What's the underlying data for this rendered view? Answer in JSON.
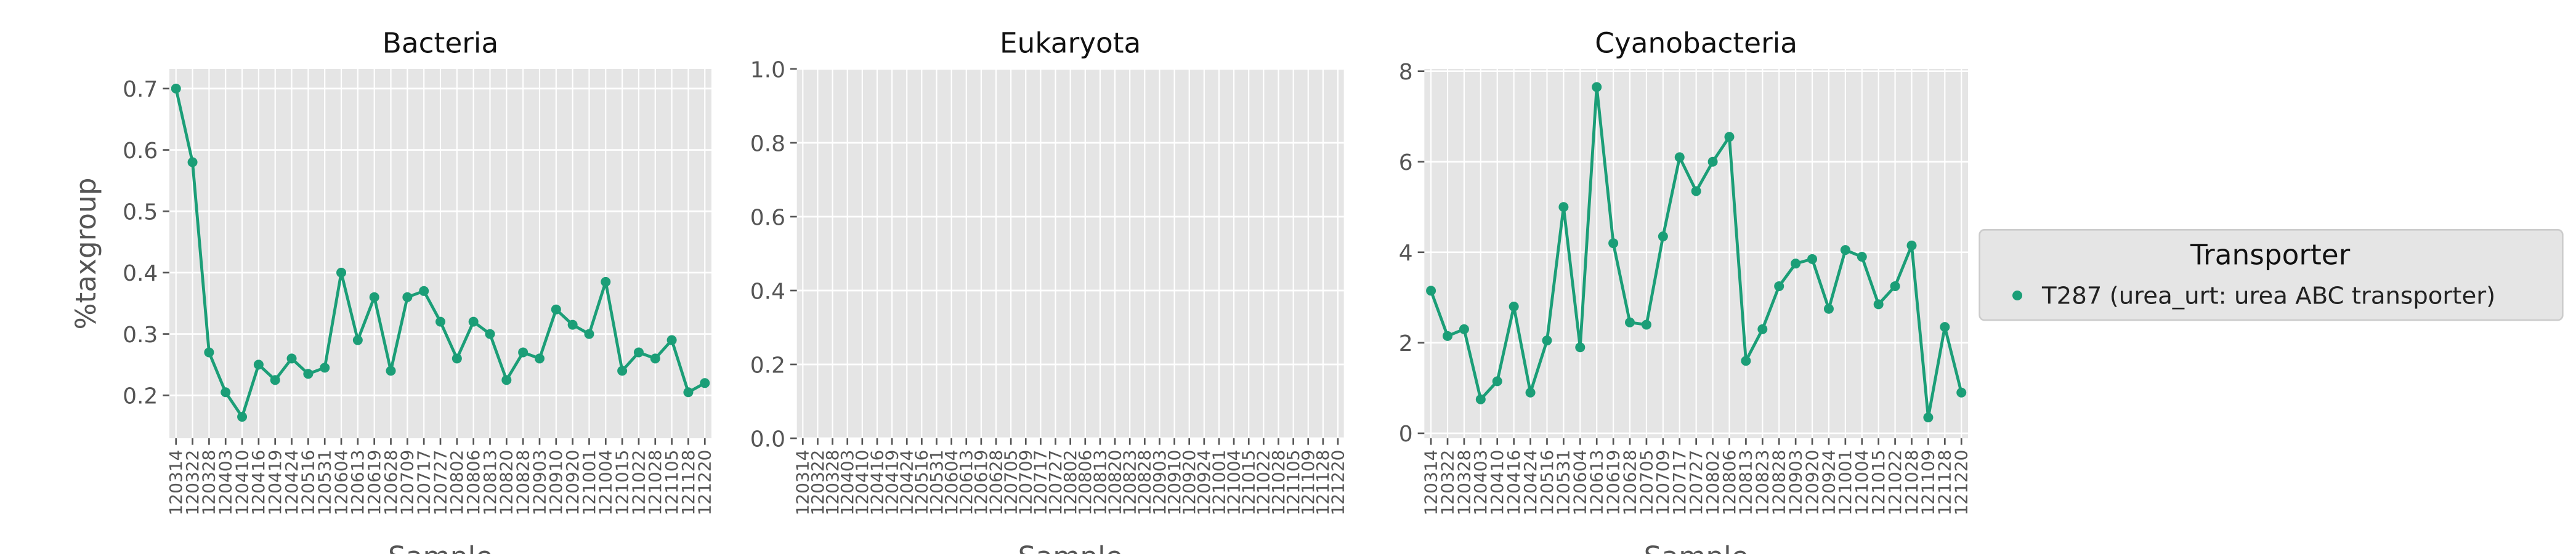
{
  "chart_data": [
    {
      "type": "line",
      "title": "Bacteria",
      "xlabel": "Sample",
      "ylabel": "%taxgroup",
      "categories": [
        "120314",
        "120322",
        "120328",
        "120403",
        "120410",
        "120416",
        "120419",
        "120424",
        "120516",
        "120531",
        "120604",
        "120613",
        "120619",
        "120628",
        "120709",
        "120717",
        "120727",
        "120802",
        "120806",
        "120813",
        "120820",
        "120828",
        "120903",
        "120910",
        "120920",
        "121001",
        "121004",
        "121015",
        "121022",
        "121028",
        "121105",
        "121128",
        "121220"
      ],
      "series": [
        {
          "name": "T287 (urea_urt: urea ABC transporter)",
          "color": "#1b9e77",
          "values": [
            0.7,
            0.58,
            0.27,
            0.205,
            0.165,
            0.25,
            0.225,
            0.26,
            0.235,
            0.245,
            0.4,
            0.29,
            0.36,
            0.24,
            0.36,
            0.37,
            0.32,
            0.26,
            0.32,
            0.3,
            0.225,
            0.27,
            0.26,
            0.34,
            0.315,
            0.3,
            0.385,
            0.24,
            0.27,
            0.26,
            0.29,
            0.205,
            0.22
          ]
        }
      ],
      "ylim": [
        0.13,
        0.732
      ],
      "yticks": [
        0.2,
        0.3,
        0.4,
        0.5,
        0.6,
        0.7
      ],
      "grid": true
    },
    {
      "type": "line",
      "title": "Eukaryota",
      "xlabel": "Sample",
      "categories": [
        "120314",
        "120322",
        "120328",
        "120403",
        "120410",
        "120416",
        "120419",
        "120424",
        "120516",
        "120531",
        "120604",
        "120613",
        "120619",
        "120628",
        "120705",
        "120709",
        "120717",
        "120727",
        "120802",
        "120806",
        "120813",
        "120820",
        "120823",
        "120828",
        "120903",
        "120910",
        "120920",
        "120924",
        "121001",
        "121004",
        "121015",
        "121022",
        "121028",
        "121105",
        "121109",
        "121128",
        "121220"
      ],
      "series": [],
      "ylim": [
        0,
        1
      ],
      "yticks": [
        {
          "value": 0,
          "label": "0.0"
        },
        {
          "value": 0.2,
          "label": "0.2"
        },
        {
          "value": 0.4,
          "label": "0.4"
        },
        {
          "value": 0.6,
          "label": "0.6"
        },
        {
          "value": 0.8,
          "label": "0.8"
        },
        {
          "value": 1,
          "label": "1.0"
        }
      ],
      "grid": true
    },
    {
      "type": "line",
      "title": "Cyanobacteria",
      "xlabel": "Sample",
      "categories": [
        "120314",
        "120322",
        "120328",
        "120403",
        "120410",
        "120416",
        "120424",
        "120516",
        "120531",
        "120604",
        "120613",
        "120619",
        "120628",
        "120705",
        "120709",
        "120717",
        "120727",
        "120802",
        "120806",
        "120813",
        "120823",
        "120828",
        "120903",
        "120920",
        "120924",
        "121001",
        "121004",
        "121015",
        "121022",
        "121028",
        "121109",
        "121128",
        "121220"
      ],
      "series": [
        {
          "name": "T287 (urea_urt: urea ABC transporter)",
          "color": "#1b9e77",
          "values": [
            3.15,
            2.15,
            2.3,
            0.75,
            1.15,
            2.8,
            0.9,
            2.05,
            5.0,
            1.9,
            7.65,
            4.2,
            2.45,
            2.4,
            4.35,
            6.1,
            5.35,
            6.0,
            6.55,
            1.6,
            2.3,
            3.25,
            3.75,
            3.85,
            2.75,
            4.05,
            3.9,
            2.85,
            3.25,
            4.15,
            0.35,
            2.35,
            0.9
          ]
        }
      ],
      "ylim": [
        -0.11,
        8.05
      ],
      "yticks": [
        0,
        2,
        4,
        6,
        8
      ],
      "grid": true
    }
  ],
  "legend_title": "Transporter"
}
